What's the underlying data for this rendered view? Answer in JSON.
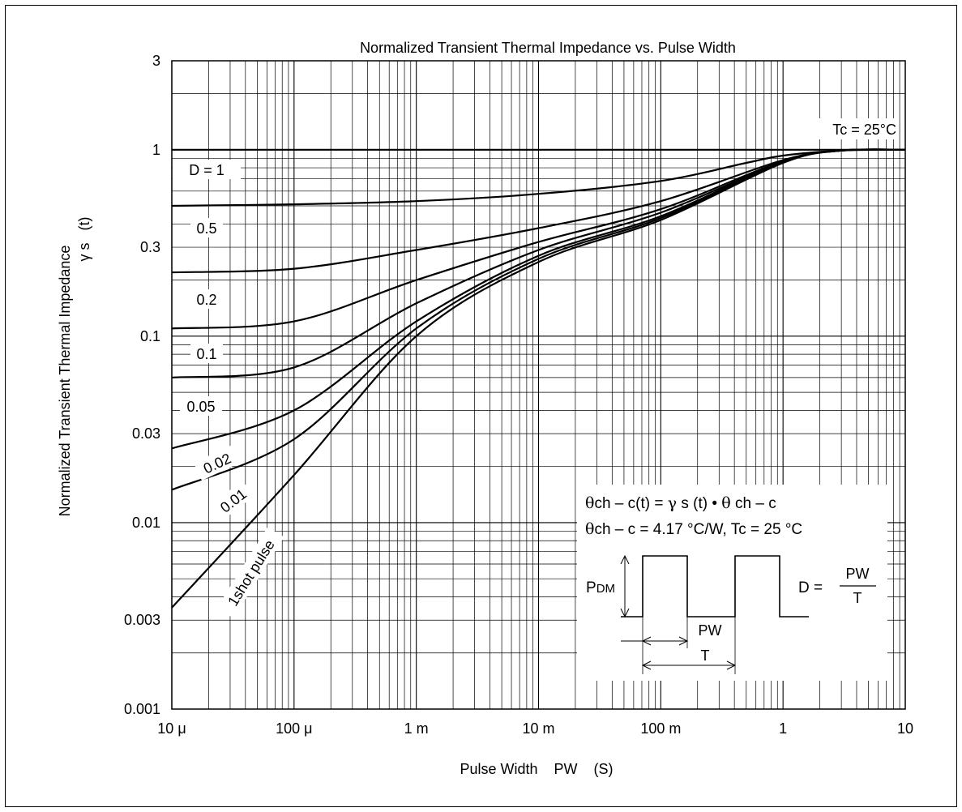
{
  "chart_data": {
    "type": "line",
    "title": "Normalized Transient Thermal Impedance vs. Pulse Width",
    "xlabel": "Pulse Width    PW    (S)",
    "ylabel_line1": "Normalized Transient Thermal Impedance",
    "ylabel_line2": "γ s   (t)",
    "x_scale": "log",
    "y_scale": "log",
    "xlim": [
      1e-05,
      10
    ],
    "ylim": [
      0.001,
      3
    ],
    "grid": true,
    "x_ticks": [
      {
        "v": 1e-05,
        "label": "10 μ"
      },
      {
        "v": 0.0001,
        "label": "100 μ"
      },
      {
        "v": 0.001,
        "label": "1 m"
      },
      {
        "v": 0.01,
        "label": "10 m"
      },
      {
        "v": 0.1,
        "label": "100 m"
      },
      {
        "v": 1,
        "label": "1"
      },
      {
        "v": 10,
        "label": "10"
      }
    ],
    "y_ticks": [
      {
        "v": 0.001,
        "label": "0.001"
      },
      {
        "v": 0.003,
        "label": "0.003"
      },
      {
        "v": 0.01,
        "label": "0.01"
      },
      {
        "v": 0.03,
        "label": "0.03"
      },
      {
        "v": 0.1,
        "label": "0.1"
      },
      {
        "v": 0.3,
        "label": "0.3"
      },
      {
        "v": 1,
        "label": "1"
      },
      {
        "v": 3,
        "label": "3"
      }
    ],
    "condition": "Tc = 25°C",
    "series": [
      {
        "name": "D = 1",
        "points": [
          [
            1e-05,
            1
          ],
          [
            10,
            1
          ]
        ]
      },
      {
        "name": "0.5",
        "points": [
          [
            1e-05,
            0.5
          ],
          [
            0.0001,
            0.51
          ],
          [
            0.001,
            0.53
          ],
          [
            0.01,
            0.58
          ],
          [
            0.1,
            0.68
          ],
          [
            0.5,
            0.85
          ],
          [
            1,
            0.93
          ],
          [
            3,
            0.99
          ],
          [
            10,
            1
          ]
        ]
      },
      {
        "name": "0.2",
        "points": [
          [
            1e-05,
            0.22
          ],
          [
            0.0001,
            0.23
          ],
          [
            0.001,
            0.29
          ],
          [
            0.01,
            0.38
          ],
          [
            0.1,
            0.53
          ],
          [
            1,
            0.88
          ],
          [
            3,
            0.99
          ],
          [
            10,
            1
          ]
        ]
      },
      {
        "name": "0.1",
        "points": [
          [
            1e-05,
            0.11
          ],
          [
            0.0001,
            0.12
          ],
          [
            0.001,
            0.2
          ],
          [
            0.01,
            0.32
          ],
          [
            0.1,
            0.48
          ],
          [
            1,
            0.87
          ],
          [
            3,
            0.99
          ],
          [
            10,
            1
          ]
        ]
      },
      {
        "name": "0.05",
        "points": [
          [
            1e-05,
            0.06
          ],
          [
            0.0001,
            0.068
          ],
          [
            0.001,
            0.15
          ],
          [
            0.01,
            0.29
          ],
          [
            0.1,
            0.46
          ],
          [
            1,
            0.86
          ],
          [
            3,
            0.99
          ],
          [
            10,
            1
          ]
        ]
      },
      {
        "name": "0.02",
        "points": [
          [
            1e-05,
            0.025
          ],
          [
            0.0001,
            0.04
          ],
          [
            0.001,
            0.12
          ],
          [
            0.01,
            0.27
          ],
          [
            0.1,
            0.44
          ],
          [
            1,
            0.86
          ],
          [
            3,
            0.99
          ],
          [
            10,
            1
          ]
        ]
      },
      {
        "name": "0.01",
        "points": [
          [
            1e-05,
            0.015
          ],
          [
            0.0001,
            0.028
          ],
          [
            0.001,
            0.11
          ],
          [
            0.01,
            0.26
          ],
          [
            0.1,
            0.43
          ],
          [
            1,
            0.86
          ],
          [
            3,
            0.99
          ],
          [
            10,
            1
          ]
        ]
      },
      {
        "name": "1shot pulse",
        "points": [
          [
            1e-05,
            0.0035
          ],
          [
            0.0001,
            0.018
          ],
          [
            0.001,
            0.1
          ],
          [
            0.01,
            0.25
          ],
          [
            0.1,
            0.42
          ],
          [
            1,
            0.85
          ],
          [
            3,
            0.99
          ],
          [
            10,
            1
          ]
        ]
      }
    ],
    "annotations": {
      "curve_labels": [
        "D = 1",
        "0.5",
        "0.2",
        "0.1",
        "0.05",
        "0.02",
        "0.01",
        "1shot pulse"
      ],
      "formula1_parts": [
        "θ",
        "ch – c(t) = ",
        "γ",
        " s (t) • ",
        "θ",
        " ch – c"
      ],
      "formula2_parts": [
        "θ",
        "ch – c = 4.17 °C/W, Tc = 25 °C"
      ],
      "pdm_main": "P",
      "pdm_sub": "DM",
      "d_prefix": "D = ",
      "d_num": "PW",
      "d_den": "T",
      "pw_label": "PW",
      "t_label": "T"
    }
  }
}
